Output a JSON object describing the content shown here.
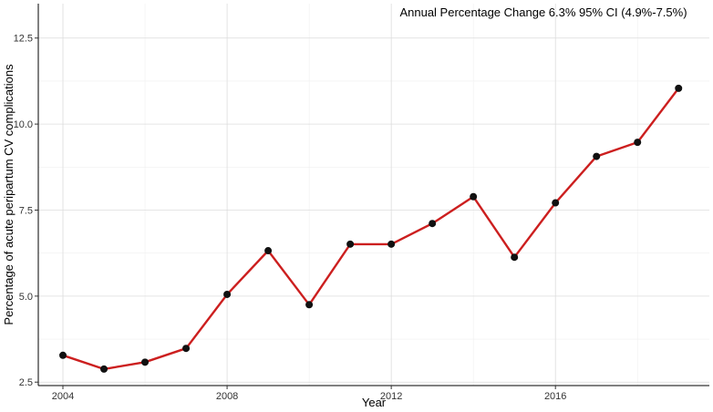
{
  "chart_data": {
    "type": "line",
    "title": "",
    "annotation": "Annual Percentage Change 6.3% 95% CI (4.9%-7.5%)",
    "xlabel": "Year",
    "ylabel": "Percentage of acute peripartum CV complications",
    "x": [
      2004,
      2005,
      2006,
      2007,
      2008,
      2009,
      2010,
      2011,
      2012,
      2013,
      2014,
      2015,
      2016,
      2017,
      2018,
      2019
    ],
    "series": [
      {
        "values": [
          3.28,
          2.88,
          3.08,
          3.48,
          5.05,
          6.32,
          4.75,
          6.51,
          6.51,
          7.11,
          7.89,
          6.13,
          7.71,
          9.06,
          9.47,
          11.04
        ]
      }
    ],
    "xlim": [
      2003.4,
      2019.75
    ],
    "ylim": [
      2.4,
      13.5
    ],
    "xticks": [
      2004,
      2008,
      2012,
      2016
    ],
    "xtick_labels": [
      "2004",
      "2008",
      "2012",
      "2016"
    ],
    "yticks": [
      2.5,
      5.0,
      7.5,
      10.0,
      12.5
    ],
    "ytick_labels": [
      "2.5",
      "5.0",
      "7.5",
      "10.0",
      "12.5"
    ],
    "grid": true,
    "line_color": "#cc1f1f",
    "point_color": "#111111"
  }
}
